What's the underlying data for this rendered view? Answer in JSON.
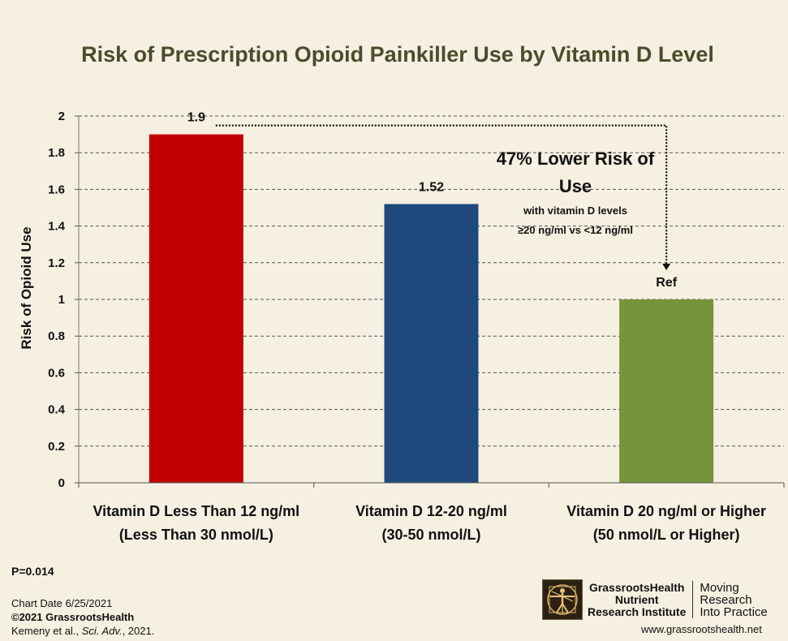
{
  "chart_data": {
    "type": "bar",
    "title": "Risk of Prescription Opioid Painkiller Use by Vitamin D Level",
    "xlabel": "",
    "ylabel": "Risk of Opioid Use",
    "ylim": [
      0,
      2
    ],
    "yticks": [
      "0",
      "0.2",
      "0.4",
      "0.6",
      "0.8",
      "1",
      "1.2",
      "1.4",
      "1.6",
      "1.8",
      "2"
    ],
    "grid": true,
    "categories": [
      [
        "Vitamin D Less Than 12 ng/ml",
        "(Less Than 30 nmol/L)"
      ],
      [
        "Vitamin D 12-20 ng/ml",
        "(30-50 nmol/L)"
      ],
      [
        "Vitamin D 20 ng/ml or Higher",
        "(50 nmol/L or Higher)"
      ]
    ],
    "values": [
      1.9,
      1.52,
      1.0
    ],
    "data_labels": [
      "1.9",
      "1.52",
      "Ref"
    ],
    "colors": [
      "#c00000",
      "#1f497d",
      "#77933c"
    ],
    "annotation": {
      "line1": "47% Lower Risk of",
      "line2": "Use",
      "line3": "with vitamin D levels",
      "line4": "≥20 ng/ml vs <12 ng/ml"
    }
  },
  "footer": {
    "p_value": "P=0.014",
    "chart_date": "Chart Date 6/25/2021",
    "copyright": "©2021 GrassrootsHealth",
    "citation_authors": "Kemeny et al., ",
    "citation_journal": "Sci. Adv.",
    "citation_year": ", 2021."
  },
  "brand": {
    "logo_icon": "vitruvian-man-icon",
    "name_line1": "GrassrootsHealth",
    "name_line2": "Nutrient",
    "name_line3": "Research Institute",
    "tagline_line1": "Moving",
    "tagline_line2": "Research",
    "tagline_line3": "Into Practice",
    "website": "www.grassrootshealth.net"
  },
  "colors": {
    "background": "#f5f0e1",
    "title": "#4a4c2c"
  }
}
